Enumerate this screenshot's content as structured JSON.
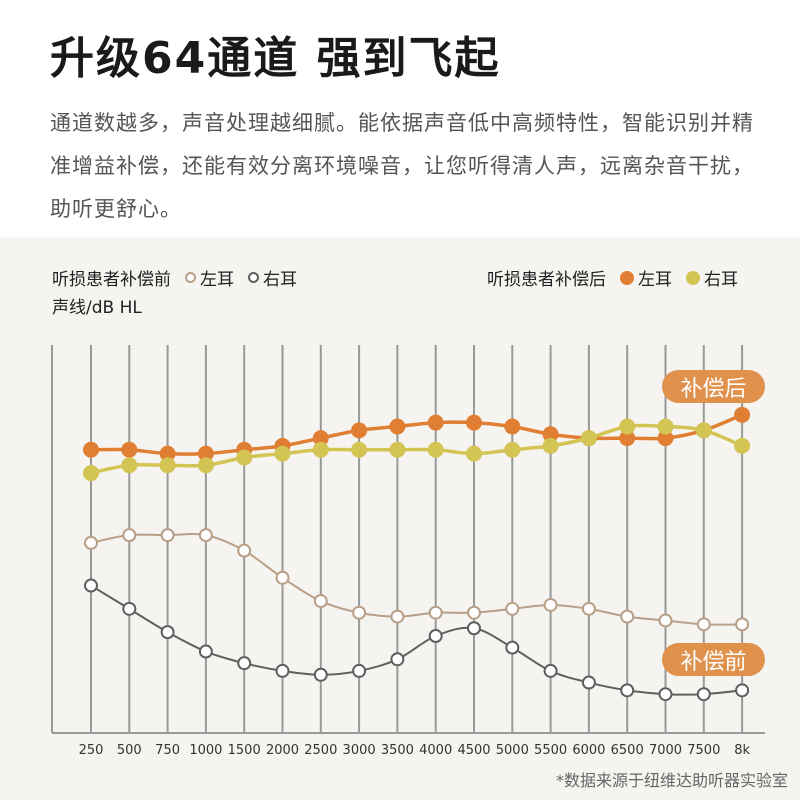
{
  "header": {
    "title": "升级64通道 强到飞起",
    "description": "通道数越多，声音处理越细腻。能依据声音低中高频特性，智能识别并精准增益补偿，还能有效分离环境噪音，让您听得清人声，远离杂音干扰，助听更舒心。"
  },
  "legend": {
    "before": {
      "label": "听损患者补偿前",
      "left": "左耳",
      "right": "右耳"
    },
    "after": {
      "label": "听损患者补偿后",
      "left": "左耳",
      "right": "右耳"
    }
  },
  "annotations": {
    "after": "补偿后",
    "before": "补偿前"
  },
  "source": "*数据来源于纽维达助听器实验室",
  "colors": {
    "after_left": "#e07f33",
    "after_right": "#d3c454",
    "before_left": "#b89f88",
    "before_right": "#5f5f5f",
    "pill": "#e0914c",
    "grid": "#999999",
    "background": "#f6f4f0"
  },
  "chart_data": {
    "type": "line",
    "ylabel": "声线/dB HL",
    "categories": [
      "250",
      "500",
      "750",
      "1000",
      "1500",
      "2000",
      "2500",
      "3000",
      "3500",
      "4000",
      "4500",
      "5000",
      "5500",
      "6000",
      "6500",
      "7000",
      "7500",
      "8k"
    ],
    "ylim": [
      0,
      100
    ],
    "grid": "vertical",
    "legend_placement": "top",
    "series": [
      {
        "name": "听损患者补偿前 左耳",
        "style": "hollow",
        "values": [
          49,
          51,
          51,
          51,
          47,
          40,
          34,
          31,
          30,
          31,
          31,
          32,
          33,
          32,
          30,
          29,
          28,
          28
        ]
      },
      {
        "name": "听损患者补偿前 右耳",
        "style": "hollow",
        "values": [
          38,
          32,
          26,
          21,
          18,
          16,
          15,
          16,
          19,
          25,
          27,
          22,
          16,
          13,
          11,
          10,
          10,
          11
        ]
      },
      {
        "name": "听损患者补偿后 左耳",
        "style": "filled",
        "values": [
          73,
          73,
          72,
          72,
          73,
          74,
          76,
          78,
          79,
          80,
          80,
          79,
          77,
          76,
          76,
          76,
          78,
          82
        ]
      },
      {
        "name": "听损患者补偿后 右耳",
        "style": "filled",
        "values": [
          67,
          69,
          69,
          69,
          71,
          72,
          73,
          73,
          73,
          73,
          72,
          73,
          74,
          76,
          79,
          79,
          78,
          74
        ]
      }
    ]
  }
}
